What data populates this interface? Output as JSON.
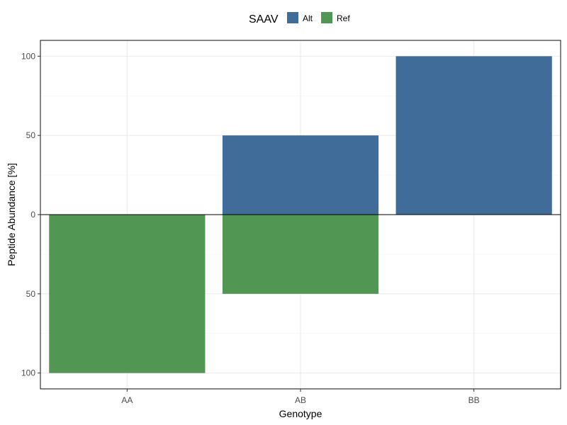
{
  "chart_data": {
    "type": "bar",
    "stacking": "diverging",
    "categories": [
      "AA",
      "AB",
      "BB"
    ],
    "series": [
      {
        "name": "Alt",
        "values": [
          0,
          50,
          100
        ],
        "direction": "up",
        "color": "#3f6c98"
      },
      {
        "name": "Ref",
        "values": [
          100,
          50,
          0
        ],
        "direction": "down",
        "color": "#529653"
      }
    ],
    "xlabel": "Genotype",
    "ylabel": "Peptide Abundance [%]",
    "ylim": [
      -110,
      110
    ],
    "yticks": [
      {
        "value": 100,
        "label": "100"
      },
      {
        "value": 50,
        "label": "50"
      },
      {
        "value": 0,
        "label": "0"
      },
      {
        "value": -50,
        "label": "50"
      },
      {
        "value": -100,
        "label": "100"
      }
    ],
    "legend": {
      "title": "SAAV",
      "position": "top",
      "entries": [
        "Alt",
        "Ref"
      ]
    },
    "grid": true,
    "zero_line": true
  }
}
